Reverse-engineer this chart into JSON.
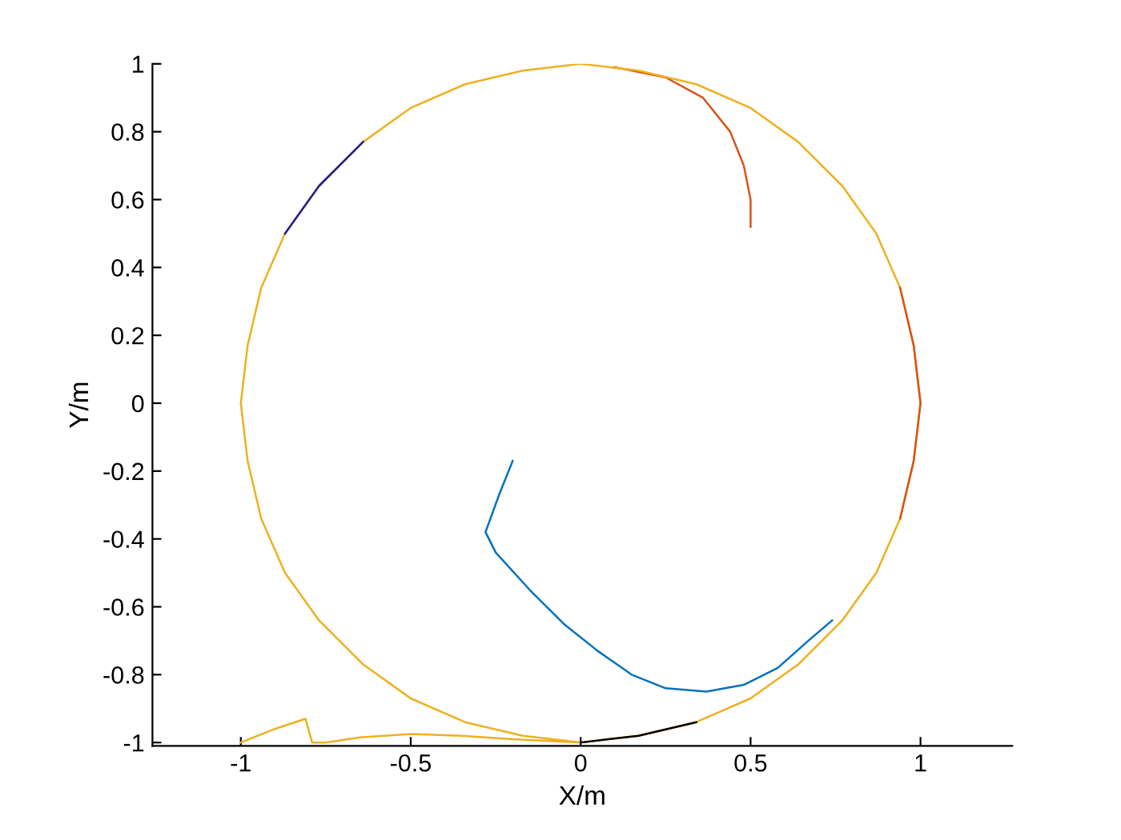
{
  "chart_data": {
    "type": "line",
    "xlabel": "X/m",
    "ylabel": "Y/m",
    "xlim": [
      -1.26,
      1.27
    ],
    "ylim": [
      -1.01,
      1
    ],
    "xticks": [
      -1,
      -0.5,
      0,
      0.5,
      1
    ],
    "yticks": [
      -1,
      -0.8,
      -0.6,
      -0.4,
      -0.2,
      0,
      0.2,
      0.4,
      0.6,
      0.8,
      1
    ],
    "grid": false,
    "marker": "none",
    "line_style": "solid",
    "series": [
      {
        "color": "#d95319",
        "x": [
          0.5,
          0.5,
          0.48,
          0.44,
          0.36,
          0.25,
          0.1
        ],
        "values": [
          0.52,
          0.6,
          0.7,
          0.8,
          0.9,
          0.96,
          0.99
        ]
      },
      {
        "color": "#0072bd",
        "x": [
          -0.2,
          -0.24,
          -0.28,
          -0.25,
          -0.15,
          -0.05,
          0.05,
          0.15,
          0.25,
          0.37,
          0.48,
          0.58,
          0.67,
          0.74
        ],
        "values": [
          -0.17,
          -0.27,
          -0.38,
          -0.44,
          -0.55,
          -0.65,
          -0.73,
          -0.8,
          -0.84,
          -0.85,
          -0.83,
          -0.78,
          -0.7,
          -0.64
        ]
      },
      {
        "color": "#edb120",
        "x": [
          -1,
          -0.9,
          -0.81,
          -0.79,
          -0.75,
          -0.65,
          -0.5,
          -0.35,
          -0.2,
          0,
          0.17,
          0.34,
          0.5,
          0.64,
          0.77,
          0.87,
          0.94,
          0.98,
          1,
          0.98,
          0.94,
          0.87,
          0.77,
          0.64,
          0.5,
          0.34,
          0.17,
          0,
          -0.17,
          -0.34,
          -0.5,
          -0.64,
          -0.77,
          -0.87,
          -0.94,
          -0.98,
          -1,
          -0.98,
          -0.94,
          -0.87,
          -0.77,
          -0.64,
          -0.5,
          -0.34,
          -0.17,
          0
        ],
        "values": [
          -1,
          -0.96,
          -0.93,
          -1,
          -1,
          -0.985,
          -0.975,
          -0.98,
          -0.99,
          -1,
          -0.98,
          -0.94,
          -0.87,
          -0.77,
          -0.64,
          -0.5,
          -0.34,
          -0.17,
          0,
          0.17,
          0.34,
          0.5,
          0.64,
          0.77,
          0.87,
          0.94,
          0.98,
          1,
          0.98,
          0.94,
          0.87,
          0.77,
          0.64,
          0.5,
          0.34,
          0.17,
          0,
          -0.17,
          -0.34,
          -0.5,
          -0.64,
          -0.77,
          -0.87,
          -0.94,
          -0.98,
          -1
        ]
      },
      {
        "color": "#000000",
        "x": [
          0,
          0.17,
          0.34
        ],
        "values": [
          -1,
          -0.98,
          -0.94
        ]
      },
      {
        "color": "#1f1f8f",
        "x": [
          -0.87,
          -0.77,
          -0.64
        ],
        "values": [
          0.5,
          0.64,
          0.77
        ]
      },
      {
        "color": "#d95319",
        "x": [
          0.94,
          0.98,
          1,
          0.98,
          0.94
        ],
        "values": [
          -0.34,
          -0.17,
          0,
          0.17,
          0.34
        ]
      }
    ]
  }
}
